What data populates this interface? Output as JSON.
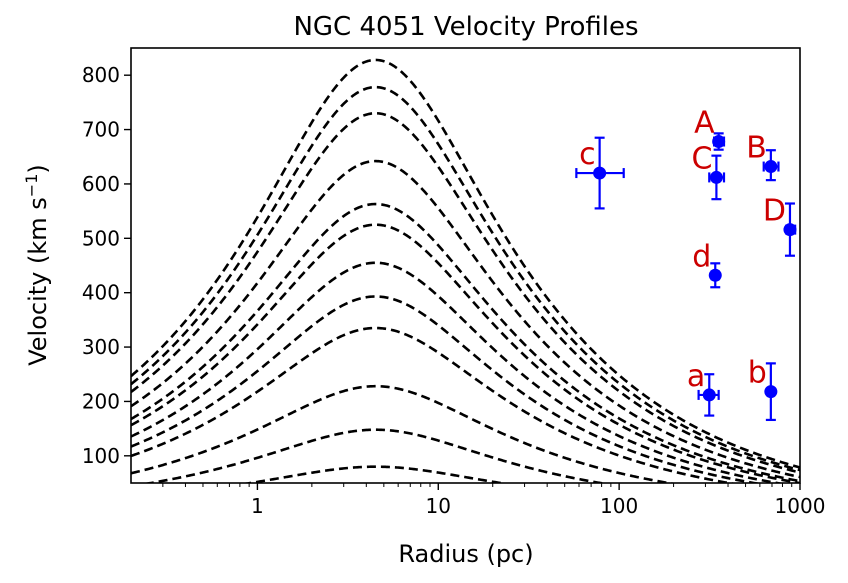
{
  "chart_data": {
    "type": "scatter",
    "title": "NGC 4051 Velocity Profiles",
    "xlabel": "Radius (pc)",
    "ylabel_main": "Velocity (km s",
    "ylabel_sup": "−1",
    "ylabel_close": ")",
    "x_scale": "log",
    "xlim": [
      0.2,
      1000
    ],
    "ylim": [
      50,
      850
    ],
    "x_ticks": [
      1,
      10,
      100,
      1000
    ],
    "x_tick_labels": [
      "1",
      "10",
      "100",
      "1000"
    ],
    "y_ticks": [
      100,
      200,
      300,
      400,
      500,
      600,
      700,
      800
    ],
    "y_tick_labels": [
      "100",
      "200",
      "300",
      "400",
      "500",
      "600",
      "700",
      "800"
    ],
    "grid": false,
    "model_curves": {
      "style": "dashed",
      "color": "#000000",
      "peak_radius_pc": 4.5,
      "peak_velocities": [
        80,
        148,
        228,
        335,
        393,
        455,
        525,
        563,
        642,
        730,
        778,
        828
      ]
    },
    "points": [
      {
        "label": "A",
        "x": 355,
        "y": 678,
        "xerr": [
          20,
          25
        ],
        "yerr": [
          15,
          15
        ]
      },
      {
        "label": "B",
        "x": 690,
        "y": 632,
        "xerr": [
          60,
          70
        ],
        "yerr": [
          25,
          30
        ]
      },
      {
        "label": "C",
        "x": 345,
        "y": 612,
        "xerr": [
          30,
          35
        ],
        "yerr": [
          40,
          40
        ]
      },
      {
        "label": "D",
        "x": 880,
        "y": 516,
        "xerr": [
          40,
          60
        ],
        "yerr": [
          48,
          48
        ]
      },
      {
        "label": "c",
        "x": 78,
        "y": 620,
        "xerr": [
          20,
          28
        ],
        "yerr": [
          65,
          65
        ]
      },
      {
        "label": "d",
        "x": 340,
        "y": 432,
        "xerr": [
          15,
          15
        ],
        "yerr": [
          22,
          22
        ]
      },
      {
        "label": "a",
        "x": 315,
        "y": 212,
        "xerr": [
          40,
          40
        ],
        "yerr": [
          38,
          38
        ]
      },
      {
        "label": "b",
        "x": 690,
        "y": 218,
        "xerr": [
          20,
          20
        ],
        "yerr": [
          52,
          52
        ]
      }
    ],
    "point_color": "#0000ff",
    "label_color": "#cc0000"
  }
}
